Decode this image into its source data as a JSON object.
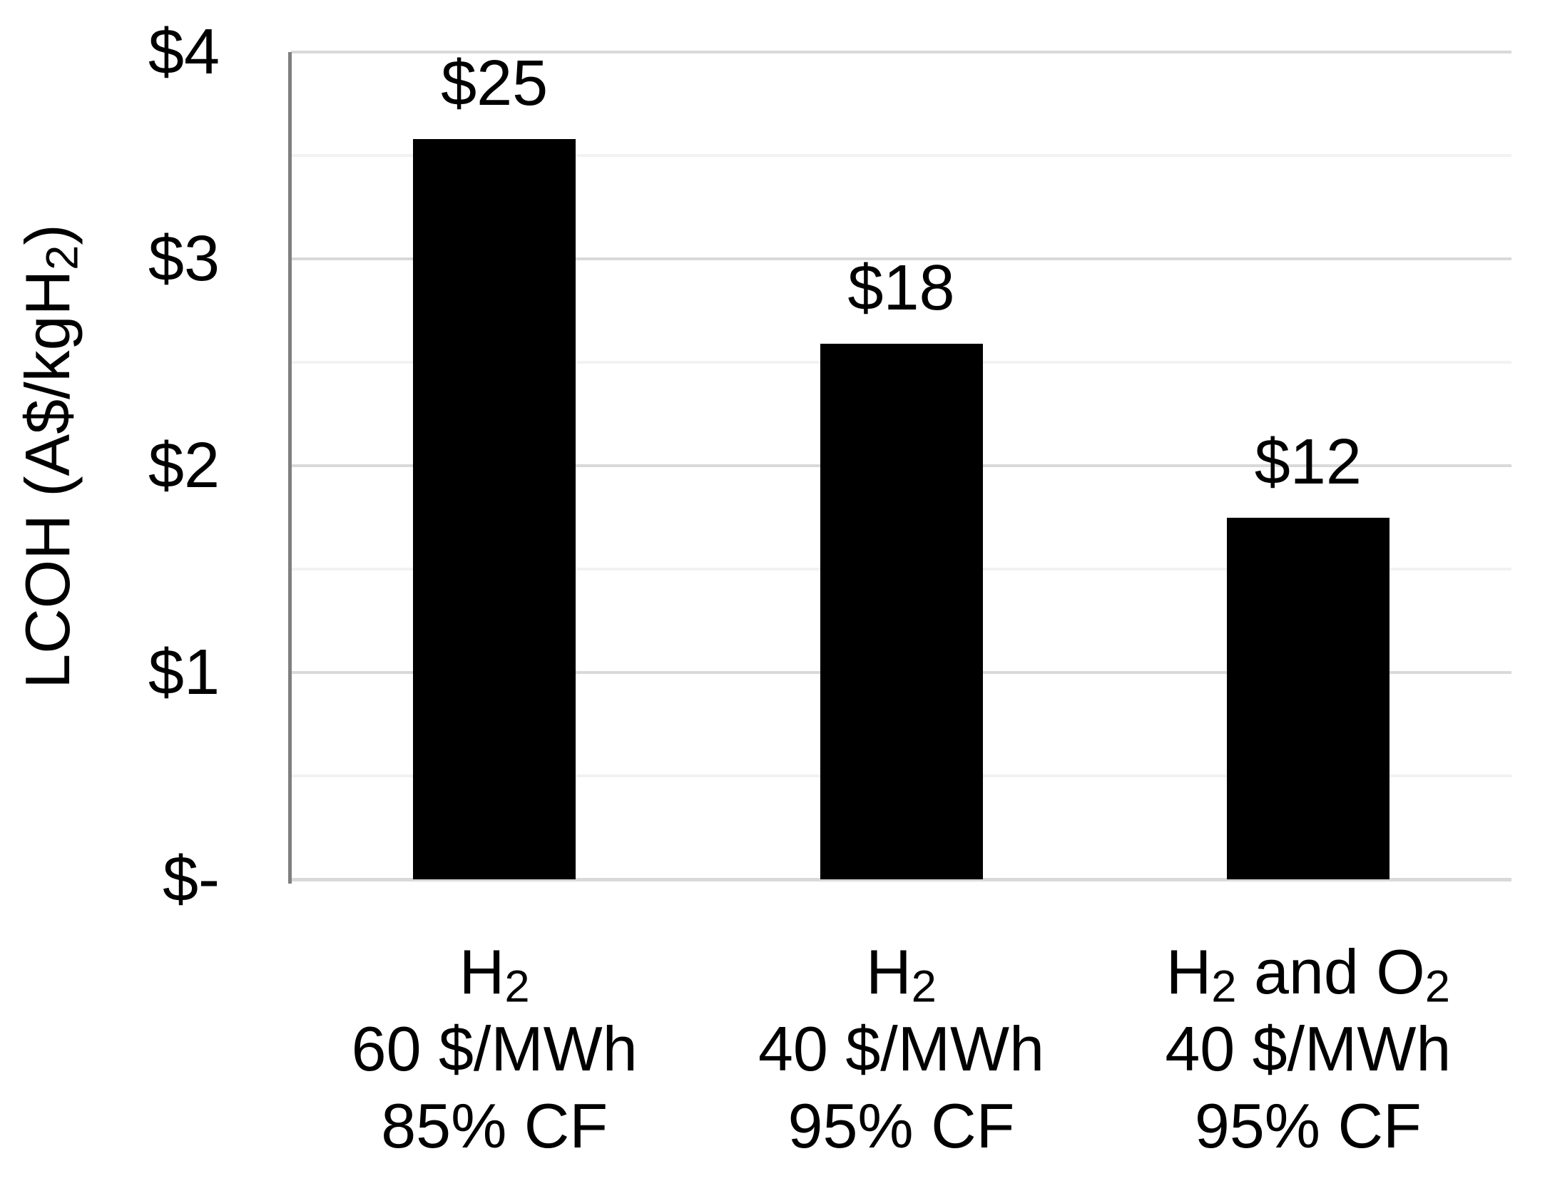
{
  "chart_data": {
    "type": "bar",
    "title": "",
    "ylabel_segments": [
      {
        "text": "LCOH (A$/kgH",
        "sub": false
      },
      {
        "text": "2",
        "sub": true
      },
      {
        "text": ")",
        "sub": false
      }
    ],
    "ylabel_plain": "LCOH (A$/kgH2)",
    "ylim": [
      0,
      4
    ],
    "grid": "horizontal",
    "legend": "none",
    "y_ticks": [
      {
        "value": 4,
        "label": "$4"
      },
      {
        "value": 3,
        "label": "$3"
      },
      {
        "value": 2,
        "label": "$2"
      },
      {
        "value": 1,
        "label": "$1"
      },
      {
        "value": 0,
        "label": "$-"
      }
    ],
    "minor_grid_values": [
      0.5,
      1.5,
      2.5,
      3.5
    ],
    "major_grid_values": [
      1,
      2,
      3,
      4
    ],
    "series": [
      {
        "name": "LCOH",
        "values_axis_units": [
          3.58,
          2.59,
          1.75
        ],
        "bar_labels": [
          "$25",
          "$18",
          "$12"
        ],
        "bar_label_values": [
          25,
          18,
          12
        ]
      }
    ],
    "categories": [
      {
        "plain": "H2 | 60 $/MWh | 85% CF",
        "lines": [
          [
            {
              "text": "H",
              "sub": false
            },
            {
              "text": "2",
              "sub": true
            }
          ],
          [
            {
              "text": "60 $/MWh",
              "sub": false
            }
          ],
          [
            {
              "text": "85% CF",
              "sub": false
            }
          ]
        ]
      },
      {
        "plain": "H2 | 40 $/MWh | 95% CF",
        "lines": [
          [
            {
              "text": "H",
              "sub": false
            },
            {
              "text": "2",
              "sub": true
            }
          ],
          [
            {
              "text": "40 $/MWh",
              "sub": false
            }
          ],
          [
            {
              "text": "95% CF",
              "sub": false
            }
          ]
        ]
      },
      {
        "plain": "H2 and O2 | 40 $/MWh | 95% CF",
        "lines": [
          [
            {
              "text": "H",
              "sub": false
            },
            {
              "text": "2",
              "sub": true
            },
            {
              "text": " and O",
              "sub": false
            },
            {
              "text": "2",
              "sub": true
            }
          ],
          [
            {
              "text": "40 $/MWh",
              "sub": false
            }
          ],
          [
            {
              "text": "95% CF",
              "sub": false
            }
          ]
        ]
      }
    ],
    "colors": {
      "bar": "#000000",
      "major_grid": "#d9d9d9",
      "minor_grid": "#f2f2f2",
      "y_axis_line": "#7f7f7f",
      "x_axis_line": "#d9d9d9",
      "text": "#000000",
      "background": "#ffffff"
    }
  }
}
